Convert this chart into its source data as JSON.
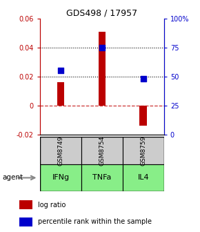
{
  "title": "GDS498 / 17957",
  "samples": [
    "IFNg",
    "TNFa",
    "IL4"
  ],
  "sample_ids": [
    "GSM8749",
    "GSM8754",
    "GSM8759"
  ],
  "log_ratios": [
    0.016,
    0.051,
    -0.014
  ],
  "percentile_ranks": [
    55,
    75,
    48
  ],
  "bar_color": "#bb0000",
  "dot_color": "#0000cc",
  "ylim_left": [
    -0.02,
    0.06
  ],
  "ylim_right": [
    0,
    100
  ],
  "hline_dotted": [
    0.04,
    0.02
  ],
  "hline_zero_color": "#cc3333",
  "agent_bg_color": "#88ee88",
  "sample_bg_color": "#cccccc",
  "bar_width": 0.18,
  "dot_size": 30,
  "left_yticks": [
    -0.02,
    0.0,
    0.02,
    0.04,
    0.06
  ],
  "right_yticks": [
    0,
    25,
    50,
    75,
    100
  ],
  "left_yticklabels": [
    "-0.02",
    "0",
    "0.02",
    "0.04",
    "0.06"
  ],
  "right_yticklabels": [
    "0",
    "25",
    "50",
    "75",
    "100%"
  ]
}
